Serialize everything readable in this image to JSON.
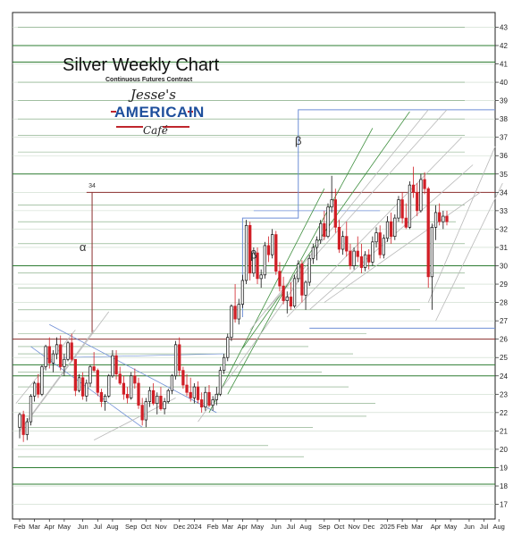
{
  "chart_data": {
    "type": "candlestick",
    "title": "Silver Weekly Chart",
    "subtitle": "Continuous Futures Contract",
    "logo": {
      "line1": "Jesse's",
      "line2": "AMERICAIN",
      "line3": "Café"
    },
    "y_ticks": [
      17,
      18,
      19,
      20,
      21,
      22,
      23,
      24,
      25,
      26,
      27,
      28,
      29,
      30,
      31,
      32,
      33,
      34,
      35,
      36,
      37,
      38,
      39,
      40,
      41,
      42,
      43
    ],
    "ylim": [
      16.2,
      43.8
    ],
    "x_ticks": [
      {
        "label": "Feb",
        "t": 0
      },
      {
        "label": "Mar",
        "t": 4
      },
      {
        "label": "Apr",
        "t": 8
      },
      {
        "label": "May",
        "t": 12
      },
      {
        "label": "Jun",
        "t": 17
      },
      {
        "label": "Jul",
        "t": 21
      },
      {
        "label": "Aug",
        "t": 25
      },
      {
        "label": "Sep",
        "t": 30
      },
      {
        "label": "Oct",
        "t": 34
      },
      {
        "label": "Nov",
        "t": 38
      },
      {
        "label": "Dec",
        "t": 43
      },
      {
        "label": "2024",
        "t": 47
      },
      {
        "label": "Feb",
        "t": 52
      },
      {
        "label": "Mar",
        "t": 56
      },
      {
        "label": "Apr",
        "t": 60
      },
      {
        "label": "May",
        "t": 64
      },
      {
        "label": "Jun",
        "t": 69
      },
      {
        "label": "Jul",
        "t": 73
      },
      {
        "label": "Aug",
        "t": 77
      },
      {
        "label": "Sep",
        "t": 82
      },
      {
        "label": "Oct",
        "t": 86
      },
      {
        "label": "Nov",
        "t": 90
      },
      {
        "label": "Dec",
        "t": 94
      },
      {
        "label": "2025",
        "t": 99
      },
      {
        "label": "Feb",
        "t": 103
      },
      {
        "label": "Mar",
        "t": 107
      },
      {
        "label": "Apr",
        "t": 112
      },
      {
        "label": "May",
        "t": 116
      },
      {
        "label": "Jun",
        "t": 121
      },
      {
        "label": "Jul",
        "t": 125
      },
      {
        "label": "Aug",
        "t": 129
      }
    ],
    "xlim": [
      -1,
      133
    ],
    "horizontal_levels": [
      {
        "y": 42,
        "color": "#2e7d32",
        "x_from": 0
      },
      {
        "y": 41.1,
        "color": "#2e7d32",
        "x_from": 0
      },
      {
        "y": 35,
        "color": "#2e7d32",
        "x_from": 0
      },
      {
        "y": 34,
        "color": "#8b2e2e",
        "x_from": 18
      },
      {
        "y": 30,
        "color": "#2e7d32",
        "x_from": 0
      },
      {
        "y": 26,
        "color": "#8b2e2e",
        "x_from": 0
      },
      {
        "y": 24.6,
        "color": "#2e7d32",
        "x_from": 0
      },
      {
        "y": 24,
        "color": "#2e7d32",
        "x_from": 0
      },
      {
        "y": 19,
        "color": "#2e7d32",
        "x_from": 0
      },
      {
        "y": 18.1,
        "color": "#2e7d32",
        "x_from": 0
      }
    ],
    "annotations": [
      {
        "text": "α",
        "t": 17,
        "y": 30.8
      },
      {
        "text": "β",
        "t": 63,
        "y": 30.4
      },
      {
        "text": "β",
        "t": 75,
        "y": 36.6
      },
      {
        "text": "34",
        "t": 19.5,
        "y": 34.25
      }
    ],
    "candles": [
      [
        0,
        21.2,
        22.0,
        20.6,
        21.9
      ],
      [
        1,
        21.9,
        22.1,
        20.4,
        20.8
      ],
      [
        2,
        20.8,
        21.7,
        20.5,
        21.5
      ],
      [
        3,
        21.5,
        23.0,
        21.3,
        22.9
      ],
      [
        4,
        22.9,
        23.7,
        22.6,
        23.6
      ],
      [
        5,
        23.6,
        24.1,
        22.8,
        23.0
      ],
      [
        6,
        23.0,
        24.6,
        22.9,
        24.5
      ],
      [
        7,
        24.5,
        25.7,
        24.3,
        25.6
      ],
      [
        8,
        25.6,
        26.1,
        24.4,
        24.7
      ],
      [
        9,
        24.7,
        25.4,
        24.2,
        25.2
      ],
      [
        10,
        25.2,
        26.1,
        24.9,
        25.7
      ],
      [
        11,
        25.7,
        26.2,
        24.3,
        24.5
      ],
      [
        12,
        24.5,
        25.2,
        24.0,
        24.9
      ],
      [
        13,
        24.9,
        25.9,
        24.8,
        25.8
      ],
      [
        14,
        25.8,
        26.3,
        24.8,
        24.9
      ],
      [
        15,
        24.9,
        24.9,
        22.9,
        23.2
      ],
      [
        16,
        23.2,
        24.1,
        23.1,
        23.9
      ],
      [
        17,
        23.9,
        24.2,
        22.7,
        22.9
      ],
      [
        18,
        22.9,
        23.8,
        22.6,
        23.6
      ],
      [
        19,
        23.6,
        24.6,
        23.4,
        24.5
      ],
      [
        20,
        24.5,
        25.3,
        24.2,
        24.3
      ],
      [
        21,
        24.3,
        24.4,
        22.9,
        23.1
      ],
      [
        22,
        23.1,
        23.3,
        22.3,
        22.6
      ],
      [
        23,
        22.6,
        23.0,
        22.1,
        22.9
      ],
      [
        24,
        22.9,
        24.1,
        22.8,
        24.0
      ],
      [
        25,
        24.0,
        25.4,
        23.9,
        25.1
      ],
      [
        26,
        25.1,
        25.4,
        23.8,
        24.1
      ],
      [
        27,
        24.1,
        24.5,
        23.5,
        23.6
      ],
      [
        28,
        23.6,
        24.0,
        22.7,
        23.0
      ],
      [
        29,
        23.0,
        23.4,
        22.5,
        22.8
      ],
      [
        30,
        22.8,
        24.2,
        22.7,
        24.0
      ],
      [
        31,
        24.0,
        24.4,
        23.3,
        23.6
      ],
      [
        32,
        23.6,
        23.9,
        22.2,
        22.4
      ],
      [
        33,
        22.4,
        22.8,
        21.3,
        21.6
      ],
      [
        34,
        21.6,
        22.8,
        21.2,
        22.6
      ],
      [
        35,
        22.6,
        23.4,
        22.3,
        23.2
      ],
      [
        36,
        23.2,
        23.6,
        22.4,
        22.5
      ],
      [
        37,
        22.5,
        23.1,
        21.9,
        22.9
      ],
      [
        38,
        22.9,
        23.4,
        22.1,
        22.2
      ],
      [
        39,
        22.2,
        22.8,
        21.9,
        22.6
      ],
      [
        40,
        22.6,
        23.3,
        22.5,
        23.2
      ],
      [
        41,
        23.2,
        24.1,
        23.0,
        24.0
      ],
      [
        42,
        24.0,
        25.9,
        23.8,
        25.7
      ],
      [
        43,
        25.7,
        26.1,
        24.0,
        24.3
      ],
      [
        44,
        24.3,
        24.5,
        23.3,
        23.5
      ],
      [
        45,
        23.5,
        24.1,
        22.9,
        23.1
      ],
      [
        46,
        23.1,
        23.9,
        22.6,
        22.8
      ],
      [
        47,
        22.8,
        23.6,
        22.5,
        23.4
      ],
      [
        48,
        23.4,
        23.7,
        22.5,
        22.7
      ],
      [
        49,
        22.7,
        23.1,
        22.0,
        22.3
      ],
      [
        50,
        22.3,
        23.4,
        22.1,
        23.1
      ],
      [
        51,
        23.1,
        23.5,
        22.3,
        22.4
      ],
      [
        52,
        22.4,
        22.9,
        22.1,
        22.7
      ],
      [
        53,
        22.7,
        23.4,
        22.4,
        23.0
      ],
      [
        54,
        23.0,
        24.5,
        22.9,
        24.3
      ],
      [
        55,
        24.3,
        25.2,
        24.1,
        25.0
      ],
      [
        56,
        25.0,
        26.3,
        24.8,
        26.1
      ],
      [
        57,
        26.1,
        27.9,
        25.9,
        27.8
      ],
      [
        58,
        27.8,
        29.0,
        26.9,
        27.1
      ],
      [
        59,
        27.1,
        28.2,
        26.8,
        27.9
      ],
      [
        60,
        27.9,
        29.5,
        27.7,
        29.2
      ],
      [
        61,
        29.2,
        32.5,
        29.0,
        32.2
      ],
      [
        62,
        32.2,
        32.4,
        29.2,
        29.6
      ],
      [
        63,
        29.6,
        31.0,
        29.4,
        30.7
      ],
      [
        64,
        30.7,
        31.0,
        29.0,
        29.3
      ],
      [
        65,
        29.3,
        29.8,
        28.8,
        29.5
      ],
      [
        66,
        29.5,
        31.3,
        29.3,
        31.1
      ],
      [
        67,
        31.1,
        31.6,
        30.2,
        30.6
      ],
      [
        68,
        30.6,
        32.0,
        30.4,
        31.7
      ],
      [
        69,
        31.7,
        31.9,
        29.5,
        29.7
      ],
      [
        70,
        29.7,
        30.2,
        28.6,
        28.9
      ],
      [
        71,
        28.9,
        29.4,
        27.9,
        28.1
      ],
      [
        72,
        28.1,
        28.6,
        27.4,
        28.3
      ],
      [
        73,
        28.3,
        29.1,
        27.6,
        27.8
      ],
      [
        74,
        27.8,
        29.5,
        27.7,
        29.3
      ],
      [
        75,
        29.3,
        30.3,
        29.1,
        30.1
      ],
      [
        76,
        30.1,
        30.3,
        28.0,
        28.4
      ],
      [
        77,
        28.4,
        29.2,
        27.6,
        29.1
      ],
      [
        78,
        29.1,
        30.6,
        28.9,
        30.4
      ],
      [
        79,
        30.4,
        31.2,
        30.1,
        31.0
      ],
      [
        80,
        31.0,
        31.6,
        30.3,
        31.4
      ],
      [
        81,
        31.4,
        32.5,
        31.2,
        32.3
      ],
      [
        82,
        32.3,
        33.0,
        31.4,
        31.6
      ],
      [
        83,
        31.6,
        33.4,
        31.5,
        33.2
      ],
      [
        84,
        33.2,
        34.9,
        32.9,
        33.6
      ],
      [
        85,
        33.6,
        34.2,
        31.8,
        32.1
      ],
      [
        86,
        32.1,
        32.5,
        30.7,
        30.9
      ],
      [
        87,
        30.9,
        31.9,
        30.6,
        31.6
      ],
      [
        88,
        31.6,
        32.4,
        30.5,
        30.8
      ],
      [
        89,
        30.8,
        31.2,
        29.8,
        30.0
      ],
      [
        90,
        30.0,
        31.0,
        29.8,
        30.8
      ],
      [
        91,
        30.8,
        31.6,
        30.2,
        30.5
      ],
      [
        92,
        30.5,
        31.2,
        29.6,
        29.9
      ],
      [
        93,
        29.9,
        30.8,
        29.7,
        30.6
      ],
      [
        94,
        30.6,
        30.9,
        29.8,
        30.2
      ],
      [
        95,
        30.2,
        31.6,
        30.0,
        31.3
      ],
      [
        96,
        31.3,
        32.1,
        31.0,
        31.8
      ],
      [
        97,
        31.8,
        32.2,
        30.4,
        30.6
      ],
      [
        98,
        30.6,
        31.7,
        30.4,
        31.5
      ],
      [
        99,
        31.5,
        32.7,
        31.3,
        32.4
      ],
      [
        100,
        32.4,
        32.9,
        31.2,
        31.6
      ],
      [
        101,
        31.6,
        32.8,
        31.4,
        32.6
      ],
      [
        102,
        32.6,
        33.8,
        32.4,
        33.6
      ],
      [
        103,
        33.6,
        34.0,
        32.3,
        32.6
      ],
      [
        104,
        32.6,
        33.4,
        32.0,
        32.1
      ],
      [
        105,
        32.1,
        34.6,
        32.0,
        34.4
      ],
      [
        106,
        34.4,
        35.4,
        33.7,
        34.0
      ],
      [
        107,
        34.0,
        34.5,
        32.7,
        33.0
      ],
      [
        108,
        33.0,
        35.0,
        32.9,
        34.7
      ],
      [
        109,
        34.7,
        35.1,
        33.9,
        34.2
      ],
      [
        110,
        34.2,
        34.3,
        28.8,
        29.4
      ],
      [
        111,
        29.4,
        32.3,
        27.6,
        32.1
      ],
      [
        112,
        32.1,
        33.3,
        31.4,
        32.9
      ],
      [
        113,
        32.9,
        33.4,
        32.2,
        32.4
      ],
      [
        114,
        32.4,
        33.0,
        32.0,
        32.7
      ],
      [
        115,
        32.7,
        33.0,
        32.2,
        32.4
      ]
    ]
  }
}
